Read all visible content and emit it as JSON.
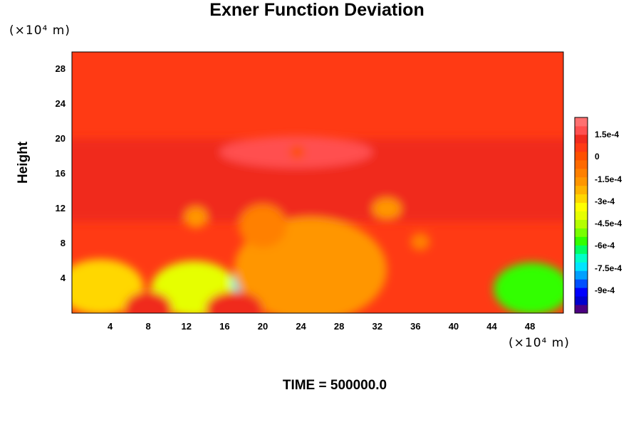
{
  "chart_data": {
    "type": "heatmap",
    "title": "Exner Function Deviation",
    "ylabel": "Height",
    "y_unit_label": "(×10⁴ m)",
    "x_unit_label": "(×10⁴ m)",
    "footer": "TIME = 500000.0",
    "xlim": [
      0,
      51.5
    ],
    "ylim": [
      0,
      30
    ],
    "x_ticks": [
      "4",
      "8",
      "12",
      "16",
      "20",
      "24",
      "28",
      "32",
      "36",
      "40",
      "44",
      "48"
    ],
    "y_ticks": [
      "4",
      "8",
      "12",
      "16",
      "20",
      "24",
      "28"
    ],
    "colorbar": {
      "range": [
        -0.00105,
        0.00027
      ],
      "tick_labels": [
        "1.5e-4",
        "0",
        "-1.5e-4",
        "-3e-4",
        "-4.5e-4",
        "-6e-4",
        "-7.5e-4",
        "-9e-4"
      ],
      "tick_values": [
        0.00015,
        0,
        -0.00015,
        -0.0003,
        -0.00045,
        -0.0006,
        -0.00075,
        -0.0009
      ],
      "colors": [
        "#4b0082",
        "#0000cd",
        "#0000ff",
        "#0050ff",
        "#00a0ff",
        "#00e5ff",
        "#00ffc8",
        "#00ff64",
        "#32ff00",
        "#78ff00",
        "#b4ff00",
        "#e6ff00",
        "#ffff00",
        "#ffd700",
        "#ffb400",
        "#ff9600",
        "#ff8000",
        "#ff6a00",
        "#ff5000",
        "#ff3a14",
        "#f02a1e",
        "#ff5050",
        "#ff7070"
      ]
    },
    "background_value": 5e-05,
    "features": [
      {
        "kind": "layer",
        "y_range": [
          10.5,
          20
        ],
        "value": 0.00011
      },
      {
        "kind": "blob",
        "x": 3,
        "y": 3,
        "rx": 4.5,
        "ry": 3.2,
        "value": -0.0003
      },
      {
        "kind": "blob",
        "x": 12.8,
        "y": 2.8,
        "rx": 4.5,
        "ry": 3.2,
        "value": -0.00038
      },
      {
        "kind": "blob",
        "x": 20.8,
        "y": 3.6,
        "rx": 4,
        "ry": 3,
        "value": -0.00075
      },
      {
        "kind": "blob",
        "x": 48.2,
        "y": 2.8,
        "rx": 4,
        "ry": 3,
        "value": -0.00058
      },
      {
        "kind": "blob",
        "x": 25,
        "y": 5,
        "rx": 8,
        "ry": 6,
        "value": -0.00015
      },
      {
        "kind": "blob",
        "x": 20,
        "y": 10,
        "rx": 2.5,
        "ry": 2.5,
        "value": -0.00012
      },
      {
        "kind": "blob",
        "x": 13,
        "y": 11,
        "rx": 1.2,
        "ry": 1.2,
        "value": -0.00015
      },
      {
        "kind": "blob",
        "x": 33,
        "y": 12,
        "rx": 1.5,
        "ry": 1.2,
        "value": -0.00015
      },
      {
        "kind": "blob",
        "x": 36.5,
        "y": 8.2,
        "rx": 1,
        "ry": 1,
        "value": -8e-05
      },
      {
        "kind": "blob",
        "x": 8,
        "y": 0.5,
        "rx": 2.5,
        "ry": 2,
        "value": 0.00012
      },
      {
        "kind": "blob",
        "x": 17,
        "y": 0.5,
        "rx": 3,
        "ry": 2,
        "value": 0.0001
      },
      {
        "kind": "blob",
        "x": 23.5,
        "y": 18.5,
        "rx": 8,
        "ry": 1.8,
        "value": 0.0002
      },
      {
        "kind": "blob",
        "x": 23.6,
        "y": 18.5,
        "rx": 0.8,
        "ry": 0.8,
        "value": 1e-05
      }
    ]
  }
}
